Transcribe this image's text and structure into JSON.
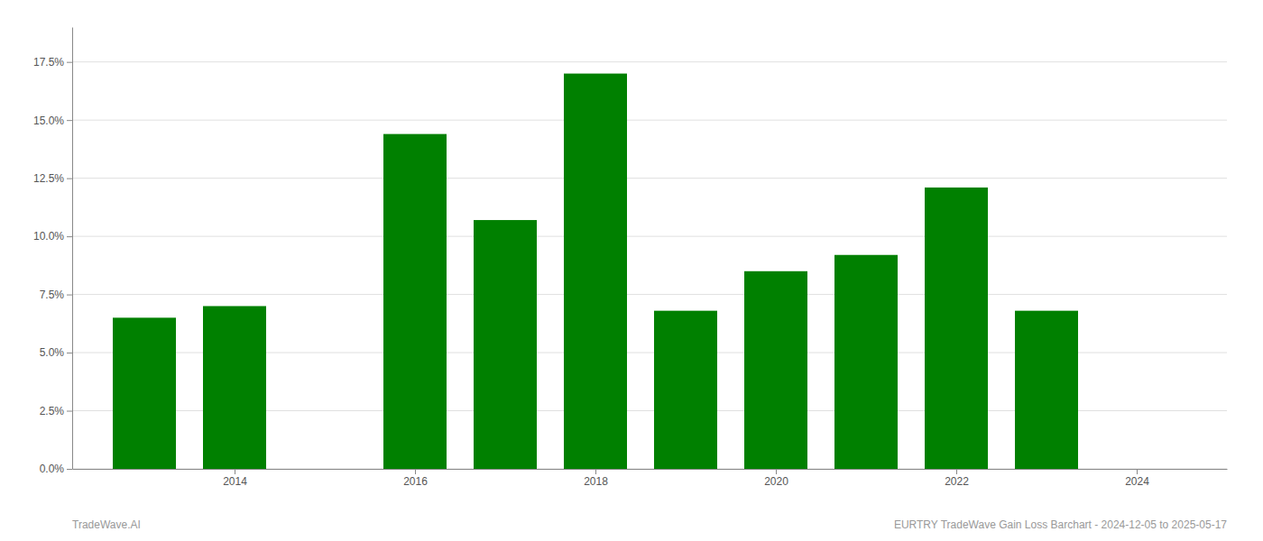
{
  "chart_data": {
    "type": "bar",
    "x": [
      2013,
      2014,
      2016,
      2017,
      2018,
      2019,
      2020,
      2021,
      2022,
      2023
    ],
    "values": [
      0.065,
      0.07,
      0.144,
      0.107,
      0.17,
      0.068,
      0.085,
      0.092,
      0.121,
      0.068
    ],
    "color": "#008000",
    "xlim": [
      2012.2,
      2025.0
    ],
    "xticks": [
      2014,
      2016,
      2018,
      2020,
      2022,
      2024
    ],
    "ylim": [
      0,
      0.19
    ],
    "yticks": [
      {
        "value": 0.0,
        "label": "0.0%"
      },
      {
        "value": 0.025,
        "label": "2.5%"
      },
      {
        "value": 0.05,
        "label": "5.0%"
      },
      {
        "value": 0.075,
        "label": "7.5%"
      },
      {
        "value": 0.1,
        "label": "10.0%"
      },
      {
        "value": 0.125,
        "label": "12.5%"
      },
      {
        "value": 0.15,
        "label": "15.0%"
      },
      {
        "value": 0.175,
        "label": "17.5%"
      }
    ],
    "grid": true,
    "annotations": [
      "TradeWave.AI",
      "EURTRY TradeWave Gain Loss Barchart - 2024-12-05 to 2025-05-17"
    ]
  }
}
